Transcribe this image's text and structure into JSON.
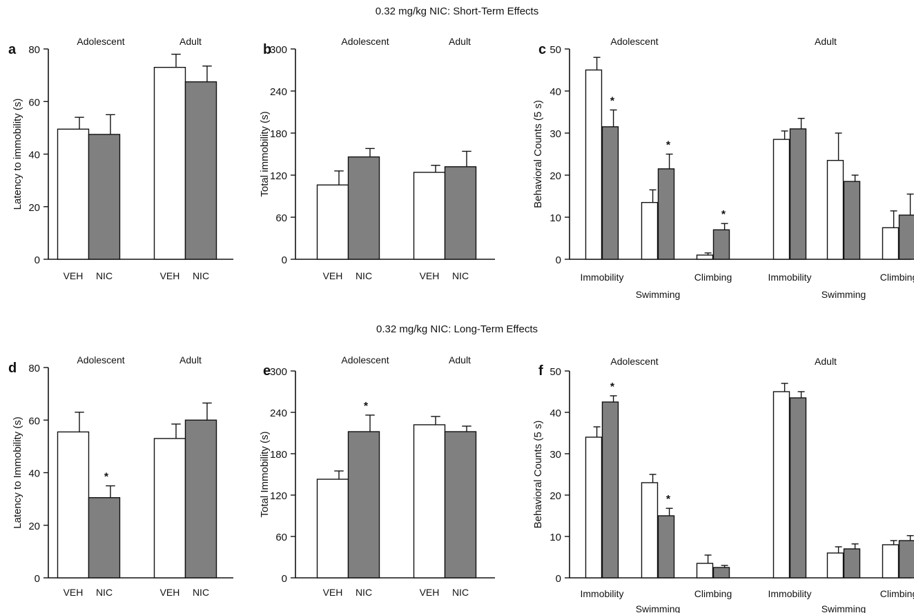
{
  "rows": [
    {
      "title": "0.32 mg/kg NIC: Short-Term Effects"
    },
    {
      "title": "0.32 mg/kg NIC: Long-Term Effects"
    }
  ],
  "colors": {
    "veh": "#ffffff",
    "nic": "#808080",
    "ink": "#111111"
  },
  "chart_data": [
    {
      "panel": "a",
      "type": "bar",
      "ylabel": "Latency to immobility (s)",
      "ylim": [
        0,
        80
      ],
      "yticks": [
        0,
        20,
        40,
        60,
        80
      ],
      "groups": [
        {
          "name": "Adolescent",
          "bars": [
            {
              "label": "VEH",
              "value": 49.5,
              "err": 4.5,
              "fill": "veh"
            },
            {
              "label": "NIC",
              "value": 47.5,
              "err": 7.5,
              "fill": "nic"
            }
          ]
        },
        {
          "name": "Adult",
          "bars": [
            {
              "label": "VEH",
              "value": 73,
              "err": 5,
              "fill": "veh"
            },
            {
              "label": "NIC",
              "value": 67.5,
              "err": 6,
              "fill": "nic"
            }
          ]
        }
      ]
    },
    {
      "panel": "b",
      "type": "bar",
      "ylabel": "Total immobility (s)",
      "ylim": [
        0,
        300
      ],
      "yticks": [
        0,
        60,
        120,
        180,
        240,
        300
      ],
      "groups": [
        {
          "name": "Adolescent",
          "bars": [
            {
              "label": "VEH",
              "value": 106,
              "err": 20,
              "fill": "veh"
            },
            {
              "label": "NIC",
              "value": 146,
              "err": 12,
              "fill": "nic"
            }
          ]
        },
        {
          "name": "Adult",
          "bars": [
            {
              "label": "VEH",
              "value": 124,
              "err": 10,
              "fill": "veh"
            },
            {
              "label": "NIC",
              "value": 132,
              "err": 22,
              "fill": "nic"
            }
          ]
        }
      ]
    },
    {
      "panel": "c",
      "type": "bar",
      "ylabel": "Behavioral Counts (5 s)",
      "ylim": [
        0,
        50
      ],
      "yticks": [
        0,
        10,
        20,
        30,
        40,
        50
      ],
      "groups": [
        {
          "name": "Adolescent",
          "clusters": [
            {
              "label": "Immobility",
              "lower": false,
              "bars": [
                {
                  "value": 45,
                  "err": 3,
                  "fill": "veh"
                },
                {
                  "value": 31.5,
                  "err": 4,
                  "fill": "nic",
                  "star": true
                }
              ]
            },
            {
              "label": "Swimming",
              "lower": true,
              "bars": [
                {
                  "value": 13.5,
                  "err": 3,
                  "fill": "veh"
                },
                {
                  "value": 21.5,
                  "err": 3.5,
                  "fill": "nic",
                  "star": true
                }
              ]
            },
            {
              "label": "Climbing",
              "lower": false,
              "bars": [
                {
                  "value": 1,
                  "err": 0.5,
                  "fill": "veh"
                },
                {
                  "value": 7,
                  "err": 1.5,
                  "fill": "nic",
                  "star": true
                }
              ]
            }
          ]
        },
        {
          "name": "Adult",
          "clusters": [
            {
              "label": "Immobility",
              "lower": false,
              "bars": [
                {
                  "value": 28.5,
                  "err": 2,
                  "fill": "veh"
                },
                {
                  "value": 31,
                  "err": 2.5,
                  "fill": "nic"
                }
              ]
            },
            {
              "label": "Swimming",
              "lower": true,
              "bars": [
                {
                  "value": 23.5,
                  "err": 6.5,
                  "fill": "veh"
                },
                {
                  "value": 18.5,
                  "err": 1.5,
                  "fill": "nic"
                }
              ]
            },
            {
              "label": "Climbing",
              "lower": false,
              "bars": [
                {
                  "value": 7.5,
                  "err": 4,
                  "fill": "veh"
                },
                {
                  "value": 10.5,
                  "err": 5,
                  "fill": "nic"
                }
              ]
            }
          ]
        }
      ]
    },
    {
      "panel": "d",
      "type": "bar",
      "ylabel": "Latency to Immobility (s)",
      "ylim": [
        0,
        80
      ],
      "yticks": [
        0,
        20,
        40,
        60,
        80
      ],
      "groups": [
        {
          "name": "Adolescent",
          "bars": [
            {
              "label": "VEH",
              "value": 55.5,
              "err": 7.5,
              "fill": "veh"
            },
            {
              "label": "NIC",
              "value": 30.5,
              "err": 4.5,
              "fill": "nic",
              "star": true
            }
          ]
        },
        {
          "name": "Adult",
          "bars": [
            {
              "label": "VEH",
              "value": 53,
              "err": 5.5,
              "fill": "veh"
            },
            {
              "label": "NIC",
              "value": 60,
              "err": 6.5,
              "fill": "nic"
            }
          ]
        }
      ]
    },
    {
      "panel": "e",
      "type": "bar",
      "ylabel": "Total Immobility (s)",
      "ylim": [
        0,
        300
      ],
      "yticks": [
        0,
        60,
        120,
        180,
        240,
        300
      ],
      "groups": [
        {
          "name": "Adolescent",
          "bars": [
            {
              "label": "VEH",
              "value": 143,
              "err": 12,
              "fill": "veh"
            },
            {
              "label": "NIC",
              "value": 212,
              "err": 24,
              "fill": "nic",
              "star": true
            }
          ]
        },
        {
          "name": "Adult",
          "bars": [
            {
              "label": "VEH",
              "value": 222,
              "err": 12,
              "fill": "veh"
            },
            {
              "label": "NIC",
              "value": 212,
              "err": 8,
              "fill": "nic"
            }
          ]
        }
      ]
    },
    {
      "panel": "f",
      "type": "bar",
      "ylabel": "Behavioral Counts (5 s)",
      "ylim": [
        0,
        50
      ],
      "yticks": [
        0,
        10,
        20,
        30,
        40,
        50
      ],
      "groups": [
        {
          "name": "Adolescent",
          "clusters": [
            {
              "label": "Immobility",
              "lower": false,
              "bars": [
                {
                  "value": 34,
                  "err": 2.5,
                  "fill": "veh"
                },
                {
                  "value": 42.5,
                  "err": 1.5,
                  "fill": "nic",
                  "star": true
                }
              ]
            },
            {
              "label": "Swimming",
              "lower": true,
              "bars": [
                {
                  "value": 23,
                  "err": 2,
                  "fill": "veh"
                },
                {
                  "value": 15,
                  "err": 1.8,
                  "fill": "nic",
                  "star": true
                }
              ]
            },
            {
              "label": "Climbing",
              "lower": false,
              "bars": [
                {
                  "value": 3.5,
                  "err": 2,
                  "fill": "veh"
                },
                {
                  "value": 2.5,
                  "err": 0.5,
                  "fill": "nic"
                }
              ]
            }
          ]
        },
        {
          "name": "Adult",
          "clusters": [
            {
              "label": "Immobility",
              "lower": false,
              "bars": [
                {
                  "value": 45,
                  "err": 2,
                  "fill": "veh"
                },
                {
                  "value": 43.5,
                  "err": 1.5,
                  "fill": "nic"
                }
              ]
            },
            {
              "label": "Swimming",
              "lower": true,
              "bars": [
                {
                  "value": 6,
                  "err": 1.5,
                  "fill": "veh"
                },
                {
                  "value": 7,
                  "err": 1.2,
                  "fill": "nic"
                }
              ]
            },
            {
              "label": "Climbing",
              "lower": false,
              "bars": [
                {
                  "value": 8,
                  "err": 1,
                  "fill": "veh"
                },
                {
                  "value": 9,
                  "err": 1.2,
                  "fill": "nic"
                }
              ]
            }
          ]
        }
      ]
    }
  ]
}
